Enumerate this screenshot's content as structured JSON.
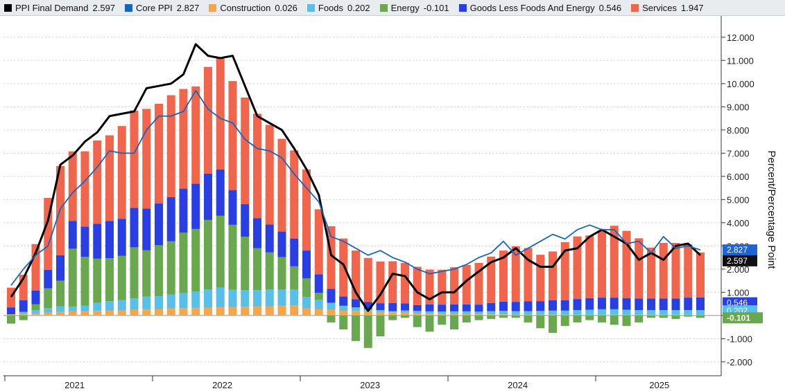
{
  "legend": [
    {
      "key": "ppi",
      "label": "PPI Final Demand",
      "value": "2.597",
      "color": "#000000"
    },
    {
      "key": "core",
      "label": "Core PPI",
      "value": "2.827",
      "color": "#1565c0"
    },
    {
      "key": "construction",
      "label": "Construction",
      "value": "0.026",
      "color": "#f5a54a"
    },
    {
      "key": "foods",
      "label": "Foods",
      "value": "0.202",
      "color": "#57bfe8"
    },
    {
      "key": "energy",
      "label": "Energy",
      "value": "-0.101",
      "color": "#6aa84f"
    },
    {
      "key": "goods",
      "label": "Goods Less Foods And Energy",
      "value": "0.546",
      "color": "#2a3fe3"
    },
    {
      "key": "services",
      "label": "Services",
      "value": "1.947",
      "color": "#f0654b"
    }
  ],
  "chart_data": {
    "type": "bar",
    "stacked": true,
    "ylabel": "Percent/Percentage Point",
    "ylim": [
      -2.6,
      12.8
    ],
    "yticks": [
      -2,
      -1,
      0,
      1,
      2,
      3,
      4,
      5,
      6,
      7,
      8,
      9,
      10,
      11,
      12
    ],
    "ytick_labels": [
      "-2.000",
      "-1.000",
      "",
      "1.000",
      "2.000",
      "3.000",
      "4.000",
      "5.000",
      "6.000",
      "7.000",
      "8.000",
      "9.000",
      "10.000",
      "11.000",
      "12.000"
    ],
    "year_labels": [
      {
        "label": "2021",
        "center": 5.5
      },
      {
        "label": "2022",
        "center": 17.5
      },
      {
        "label": "2023",
        "center": 29.5
      },
      {
        "label": "2024",
        "center": 41.5
      },
      {
        "label": "2025",
        "center": 53
      }
    ],
    "year_boundaries": [
      0,
      12,
      24,
      36,
      48
    ],
    "categories": [
      "Jan 2021",
      "Feb 2021",
      "Mar 2021",
      "Apr 2021",
      "May 2021",
      "Jun 2021",
      "Jul 2021",
      "Aug 2021",
      "Sep 2021",
      "Oct 2021",
      "Nov 2021",
      "Dec 2021",
      "Jan 2022",
      "Feb 2022",
      "Mar 2022",
      "Apr 2022",
      "May 2022",
      "Jun 2022",
      "Jul 2022",
      "Aug 2022",
      "Sep 2022",
      "Oct 2022",
      "Nov 2022",
      "Dec 2022",
      "Jan 2023",
      "Feb 2023",
      "Mar 2023",
      "Apr 2023",
      "May 2023",
      "Jun 2023",
      "Jul 2023",
      "Aug 2023",
      "Sep 2023",
      "Oct 2023",
      "Nov 2023",
      "Dec 2023",
      "Jan 2024",
      "Feb 2024",
      "Mar 2024",
      "Apr 2024",
      "May 2024",
      "Jun 2024",
      "Jul 2024",
      "Aug 2024",
      "Sep 2024",
      "Oct 2024",
      "Nov 2024",
      "Dec 2024",
      "Jan 2025",
      "Feb 2025",
      "Mar 2025",
      "Apr 2025",
      "May 2025",
      "Jun 2025",
      "Jul 2025",
      "Aug 2025",
      "Sep 2025"
    ],
    "series": [
      {
        "name": "Construction",
        "color": "#f5a54a",
        "values": [
          0.05,
          0.06,
          0.08,
          0.12,
          0.15,
          0.18,
          0.18,
          0.2,
          0.22,
          0.22,
          0.24,
          0.26,
          0.28,
          0.3,
          0.32,
          0.33,
          0.34,
          0.35,
          0.36,
          0.38,
          0.4,
          0.4,
          0.42,
          0.44,
          0.3,
          0.28,
          0.25,
          0.22,
          0.2,
          0.18,
          0.15,
          0.14,
          0.12,
          0.1,
          0.08,
          0.07,
          0.06,
          0.06,
          0.05,
          0.05,
          0.05,
          0.04,
          0.04,
          0.04,
          0.04,
          0.03,
          0.03,
          0.03,
          0.03,
          0.03,
          0.03,
          0.03,
          0.03,
          0.03,
          0.03,
          0.03,
          0.026
        ]
      },
      {
        "name": "Foods",
        "color": "#57bfe8",
        "values": [
          0.0,
          0.1,
          0.15,
          0.2,
          0.25,
          0.2,
          0.25,
          0.35,
          0.4,
          0.45,
          0.5,
          0.55,
          0.55,
          0.6,
          0.65,
          0.7,
          0.78,
          0.85,
          0.75,
          0.72,
          0.7,
          0.72,
          0.7,
          0.68,
          0.5,
          0.4,
          0.3,
          0.2,
          0.15,
          0.1,
          0.08,
          0.05,
          0.1,
          0.1,
          0.1,
          0.1,
          0.12,
          0.12,
          0.12,
          0.14,
          0.15,
          0.15,
          0.15,
          0.16,
          0.17,
          0.18,
          0.2,
          0.22,
          0.24,
          0.24,
          0.22,
          0.2,
          0.2,
          0.2,
          0.2,
          0.2,
          0.202
        ]
      },
      {
        "name": "Energy",
        "color": "#6aa84f",
        "values": [
          -0.35,
          -0.2,
          0.25,
          0.85,
          1.1,
          2.5,
          2.1,
          1.9,
          1.85,
          1.9,
          2.2,
          2.0,
          2.2,
          2.3,
          2.6,
          2.7,
          3.0,
          3.1,
          2.8,
          2.3,
          1.8,
          1.6,
          1.4,
          1.0,
          0.8,
          0.3,
          -0.3,
          -0.6,
          -1.1,
          -1.4,
          -0.9,
          -0.2,
          -0.1,
          -0.5,
          -0.7,
          -0.4,
          -0.6,
          -0.3,
          -0.2,
          -0.15,
          -0.1,
          -0.1,
          -0.3,
          -0.55,
          -0.75,
          -0.45,
          -0.3,
          -0.2,
          -0.3,
          -0.4,
          -0.45,
          -0.3,
          -0.1,
          -0.1,
          -0.15,
          -0.05,
          -0.101
        ]
      },
      {
        "name": "Goods Less Foods And Energy",
        "color": "#2a3fe3",
        "values": [
          0.3,
          0.5,
          0.6,
          0.8,
          1.1,
          1.2,
          1.3,
          1.5,
          1.6,
          1.6,
          1.7,
          1.8,
          1.8,
          1.9,
          1.9,
          1.95,
          2.0,
          2.0,
          1.5,
          1.4,
          1.3,
          1.2,
          1.1,
          1.2,
          1.2,
          0.8,
          0.6,
          0.4,
          0.35,
          0.3,
          0.3,
          0.35,
          0.3,
          0.25,
          0.3,
          0.3,
          0.3,
          0.3,
          0.3,
          0.35,
          0.4,
          0.4,
          0.42,
          0.42,
          0.45,
          0.45,
          0.48,
          0.5,
          0.5,
          0.5,
          0.5,
          0.5,
          0.5,
          0.5,
          0.5,
          0.54,
          0.546
        ]
      },
      {
        "name": "Services",
        "color": "#f0654b",
        "values": [
          0.85,
          1.1,
          2.0,
          3.1,
          3.85,
          3.0,
          3.25,
          3.6,
          3.7,
          4.0,
          4.2,
          4.3,
          4.3,
          4.4,
          4.3,
          4.2,
          4.6,
          4.8,
          4.7,
          4.6,
          4.5,
          4.3,
          4.0,
          3.8,
          3.5,
          2.8,
          2.7,
          2.5,
          2.1,
          1.9,
          1.8,
          1.8,
          1.75,
          1.65,
          1.5,
          1.5,
          1.6,
          1.7,
          1.8,
          2.0,
          2.2,
          2.4,
          2.3,
          2.0,
          2.1,
          2.5,
          2.7,
          2.7,
          2.9,
          3.1,
          2.9,
          2.6,
          2.2,
          2.4,
          2.4,
          2.3,
          1.947
        ]
      }
    ],
    "lines": [
      {
        "name": "PPI Final Demand",
        "color": "#000000",
        "width": 3,
        "values": [
          0.8,
          1.6,
          2.7,
          4.1,
          6.5,
          6.9,
          7.5,
          7.9,
          8.6,
          8.7,
          8.8,
          9.8,
          9.9,
          10.0,
          10.4,
          11.7,
          11.2,
          11.1,
          11.2,
          9.9,
          8.6,
          8.3,
          8.0,
          7.2,
          6.3,
          5.2,
          2.6,
          2.2,
          1.0,
          0.2,
          0.9,
          1.8,
          1.7,
          1.0,
          0.7,
          1.0,
          1.0,
          1.5,
          1.9,
          2.3,
          2.5,
          2.9,
          2.4,
          2.1,
          2.1,
          2.8,
          2.9,
          3.4,
          3.7,
          3.4,
          3.1,
          2.4,
          2.7,
          2.4,
          3.0,
          3.1,
          2.597
        ]
      },
      {
        "name": "Core PPI",
        "color": "#1565c0",
        "width": 1.8,
        "values": [
          1.3,
          2.0,
          2.6,
          3.0,
          4.6,
          5.3,
          5.8,
          6.4,
          7.1,
          7.0,
          7.0,
          8.0,
          8.6,
          8.6,
          8.8,
          9.7,
          8.9,
          8.5,
          8.3,
          7.6,
          7.2,
          7.1,
          6.8,
          6.1,
          5.5,
          4.9,
          3.4,
          3.2,
          2.9,
          2.6,
          2.8,
          2.5,
          2.3,
          2.0,
          1.8,
          1.9,
          2.0,
          2.2,
          2.5,
          2.7,
          3.2,
          2.6,
          2.9,
          3.2,
          3.5,
          3.3,
          3.7,
          3.9,
          3.7,
          3.7,
          3.1,
          3.2,
          2.7,
          3.4,
          2.9,
          3.0,
          2.827
        ]
      }
    ],
    "end_tags": [
      {
        "series": "Core PPI",
        "label": "2.827",
        "value": 2.827,
        "color": "#1f64d6"
      },
      {
        "series": "PPI Final Demand",
        "label": "2.597",
        "value": 2.597,
        "color": "#111111"
      },
      {
        "series": "Goods Less Foods And Energy",
        "label": "0.546",
        "value": 0.546,
        "color": "#2a3fe3"
      },
      {
        "series": "Foods",
        "label": "0.202",
        "value": 0.202,
        "color": "#57bfe8"
      },
      {
        "series": "Energy",
        "label": "-0.101",
        "value": -0.101,
        "color": "#6aa84f"
      }
    ]
  }
}
